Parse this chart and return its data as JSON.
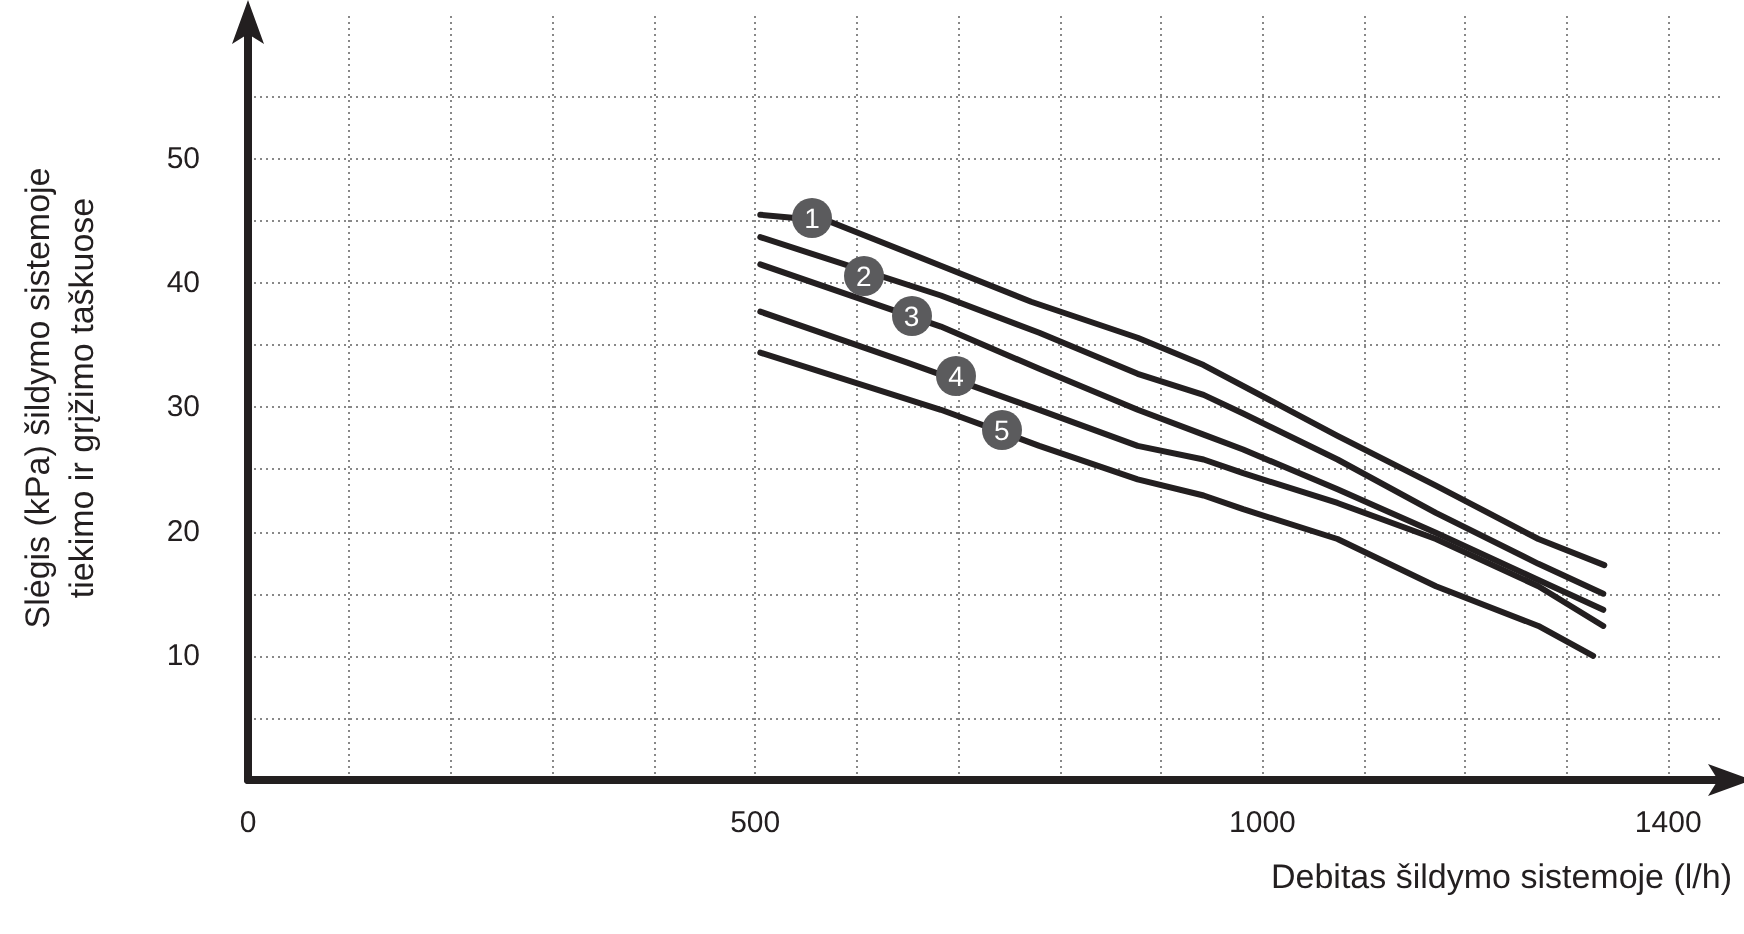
{
  "chart_data": {
    "type": "line",
    "xlabel": "Debitas šildymo sistemoje (l/h)",
    "ylabel": "Slėgis (kPa) šildymo sistemoje\ntiekimo ir grįžimo taškuose",
    "xlim": [
      0,
      1455
    ],
    "ylim": [
      0,
      61.5
    ],
    "xticks": [
      0,
      {
        "value": 100,
        "label": null
      },
      {
        "value": 200,
        "label": null
      },
      {
        "value": 300,
        "label": null
      },
      {
        "value": 400,
        "label": null
      },
      500,
      {
        "value": 600,
        "label": null
      },
      {
        "value": 700,
        "label": null
      },
      {
        "value": 800,
        "label": null
      },
      {
        "value": 900,
        "label": null
      },
      1000,
      {
        "value": 1100,
        "label": null
      },
      {
        "value": 1200,
        "label": null
      },
      {
        "value": 1300,
        "label": null
      },
      1400
    ],
    "yticks": [
      {
        "value": 5,
        "label": null
      },
      10,
      {
        "value": 15,
        "label": null
      },
      20,
      {
        "value": 25,
        "label": null
      },
      30,
      {
        "value": 35,
        "label": null
      },
      40,
      {
        "value": 45,
        "label": null
      },
      50,
      {
        "value": 55,
        "label": null
      }
    ],
    "grid": true,
    "marker": "none",
    "line_style": "solid",
    "series": [
      {
        "color": "#231f20",
        "x": [
          505,
          572,
          683,
          772,
          877,
          942,
          1074,
          1171,
          1272,
          1337
        ],
        "values": [
          45.5,
          45,
          41.4,
          38.5,
          35.6,
          33.4,
          27.7,
          23.7,
          19.4,
          17.3
        ]
      },
      {
        "color": "#231f20",
        "x": [
          505,
          683,
          780,
          877,
          942,
          981,
          1074,
          1171,
          1272,
          1336
        ],
        "values": [
          43.7,
          39.0,
          36.0,
          32.7,
          31.0,
          29.5,
          25.8,
          21.5,
          17.4,
          15.0
        ]
      },
      {
        "color": "#231f20",
        "x": [
          505,
          683,
          780,
          877,
          942,
          981,
          1074,
          1171,
          1272,
          1336
        ],
        "values": [
          41.5,
          36.5,
          33.1,
          29.8,
          27.8,
          26.6,
          23.4,
          19.9,
          16.1,
          13.7
        ]
      },
      {
        "color": "#231f20",
        "x": [
          505,
          650,
          780,
          877,
          942,
          981,
          1074,
          1171,
          1272,
          1336
        ],
        "values": [
          37.7,
          33.6,
          29.8,
          26.9,
          25.8,
          24.7,
          22.3,
          19.4,
          15.6,
          12.4
        ]
      },
      {
        "color": "#231f20",
        "x": [
          505,
          683,
          780,
          877,
          942,
          981,
          1074,
          1171,
          1272,
          1326
        ],
        "values": [
          34.4,
          29.8,
          26.9,
          24.2,
          22.9,
          21.8,
          19.4,
          15.6,
          12.4,
          10.0
        ]
      }
    ],
    "annotations": [
      {
        "text": "1",
        "x": 556,
        "y": 45.2
      },
      {
        "text": "2",
        "x": 607,
        "y": 40.6
      },
      {
        "text": "3",
        "x": 654,
        "y": 37.4
      },
      {
        "text": "4",
        "x": 698,
        "y": 32.6
      },
      {
        "text": "5",
        "x": 743,
        "y": 28.1
      }
    ]
  }
}
